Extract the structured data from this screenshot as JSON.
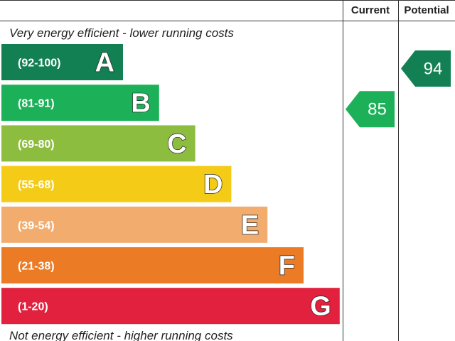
{
  "chart_data": {
    "type": "bar",
    "columns": {
      "current": "Current",
      "potential": "Potential"
    },
    "top_caption": "Very energy efficient - lower running costs",
    "bottom_caption": "Not energy efficient - higher running costs",
    "bands": [
      {
        "letter": "A",
        "range": "(92-100)",
        "color": "#138053"
      },
      {
        "letter": "B",
        "range": "(81-91)",
        "color": "#1cb159"
      },
      {
        "letter": "C",
        "range": "(69-80)",
        "color": "#8dbd3f"
      },
      {
        "letter": "D",
        "range": "(55-68)",
        "color": "#f4cc17"
      },
      {
        "letter": "E",
        "range": "(39-54)",
        "color": "#f1ac6e"
      },
      {
        "letter": "F",
        "range": "(21-38)",
        "color": "#eb7c25"
      },
      {
        "letter": "G",
        "range": "(1-20)",
        "color": "#e1213d"
      }
    ],
    "ratings": {
      "current": {
        "value": 85,
        "band": "B",
        "label": "85",
        "color": "#1cb159"
      },
      "potential": {
        "value": 94,
        "band": "A",
        "label": "94",
        "color": "#138053"
      }
    }
  }
}
